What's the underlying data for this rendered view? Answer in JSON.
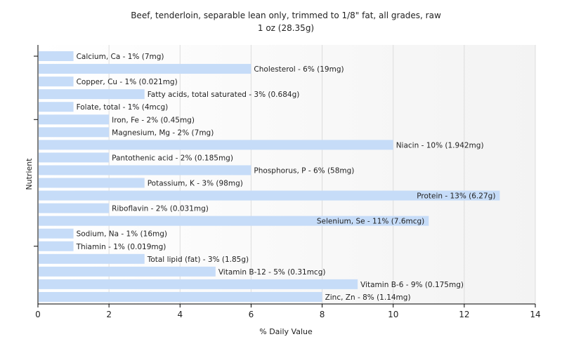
{
  "chart_data": {
    "type": "bar",
    "orientation": "horizontal",
    "title": "Beef, tenderloin, separable lean only, trimmed to 1/8\" fat, all grades, raw",
    "subtitle": "1 oz (28.35g)",
    "xlabel": "% Daily Value",
    "ylabel": "Nutrient",
    "xlim": [
      0,
      14
    ],
    "xticks": [
      0,
      2,
      4,
      6,
      8,
      10,
      12,
      14
    ],
    "grid": "vertical",
    "legend": "none",
    "bar_color": "#c6dcf8",
    "categories": [
      "Calcium, Ca",
      "Cholesterol",
      "Copper, Cu",
      "Fatty acids, total saturated",
      "Folate, total",
      "Iron, Fe",
      "Magnesium, Mg",
      "Niacin",
      "Pantothenic acid",
      "Phosphorus, P",
      "Potassium, K",
      "Protein",
      "Riboflavin",
      "Selenium, Se",
      "Sodium, Na",
      "Thiamin",
      "Total lipid (fat)",
      "Vitamin B-12",
      "Vitamin B-6",
      "Zinc, Zn"
    ],
    "values": [
      1,
      6,
      1,
      3,
      1,
      2,
      2,
      10,
      2,
      6,
      3,
      13,
      2,
      11,
      1,
      1,
      3,
      5,
      9,
      8
    ],
    "labels": [
      "Calcium, Ca - 1% (7mg)",
      "Cholesterol - 6% (19mg)",
      "Copper, Cu - 1% (0.021mg)",
      "Fatty acids, total saturated - 3% (0.684g)",
      "Folate, total - 1% (4mcg)",
      "Iron, Fe - 2% (0.45mg)",
      "Magnesium, Mg - 2% (7mg)",
      "Niacin - 10% (1.942mg)",
      "Pantothenic acid - 2% (0.185mg)",
      "Phosphorus, P - 6% (58mg)",
      "Potassium, K - 3% (98mg)",
      "Protein - 13% (6.27g)",
      "Riboflavin - 2% (0.031mg)",
      "Selenium, Se - 11% (7.6mcg)",
      "Sodium, Na - 1% (16mg)",
      "Thiamin - 1% (0.019mg)",
      "Total lipid (fat) - 3% (1.85g)",
      "Vitamin B-12 - 5% (0.31mcg)",
      "Vitamin B-6 - 9% (0.175mg)",
      "Zinc, Zn - 8% (1.14mg)"
    ]
  }
}
